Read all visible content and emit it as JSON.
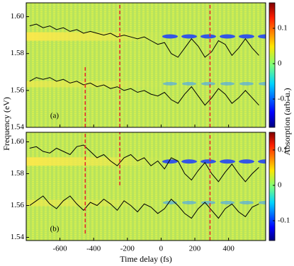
{
  "chart_data": [
    {
      "type": "heatmap",
      "panel_label": "(a)",
      "ylabel": "Frequency (eV)",
      "colorbar_label": "Absorption (arb. u.)",
      "xlim": [
        -800,
        620
      ],
      "xticks": [
        -600,
        -400,
        -200,
        0,
        200,
        400
      ],
      "ylim": [
        1.54,
        1.6075
      ],
      "yticks": [
        1.54,
        1.56,
        1.58,
        {
          "value": 1.6,
          "label": "1.60"
        }
      ],
      "clim": [
        -0.18,
        0.172
      ],
      "cticks": [
        -0.1,
        0,
        0.1
      ],
      "x": [
        -780,
        -740,
        -700,
        -660,
        -620,
        -580,
        -540,
        -500,
        -460,
        -420,
        -380,
        -340,
        -300,
        -260,
        -220,
        -180,
        -140,
        -100,
        -60,
        -20,
        20,
        60,
        100,
        140,
        180,
        220,
        260,
        300,
        340,
        380,
        420,
        460,
        500,
        540,
        580
      ],
      "series": [
        {
          "color": "#000000",
          "values": [
            1.595,
            1.596,
            1.594,
            1.595,
            1.593,
            1.594,
            1.592,
            1.593,
            1.591,
            1.592,
            1.591,
            1.59,
            1.591,
            1.589,
            1.59,
            1.589,
            1.588,
            1.589,
            1.587,
            1.585,
            1.586,
            1.58,
            1.578,
            1.583,
            1.588,
            1.584,
            1.578,
            1.581,
            1.587,
            1.585,
            1.579,
            1.583,
            1.588,
            1.583,
            1.579
          ]
        },
        {
          "color": "#000000",
          "values": [
            1.565,
            1.567,
            1.566,
            1.567,
            1.565,
            1.566,
            1.564,
            1.565,
            1.563,
            1.564,
            1.562,
            1.563,
            1.561,
            1.562,
            1.56,
            1.561,
            1.559,
            1.56,
            1.558,
            1.557,
            1.559,
            1.555,
            1.553,
            1.558,
            1.562,
            1.557,
            1.552,
            1.556,
            1.561,
            1.558,
            1.553,
            1.556,
            1.56,
            1.556,
            1.552
          ]
        }
      ],
      "markers_color": "#e8202a",
      "markers": [
        {
          "x": -450,
          "y": [
            1.54,
            1.573
          ]
        },
        {
          "x": -245,
          "y": [
            1.54,
            1.6075
          ]
        },
        {
          "x": 290,
          "y": [
            1.54,
            1.6075
          ]
        }
      ]
    },
    {
      "type": "heatmap",
      "panel_label": "(b)",
      "xlabel": "Time delay (fs)",
      "xlim": [
        -800,
        620
      ],
      "xticks": [
        -600,
        -400,
        -200,
        0,
        200,
        400
      ],
      "ylim": [
        1.538,
        1.606
      ],
      "yticks": [
        1.54,
        1.56,
        1.58,
        {
          "value": 1.6,
          "label": "1.60"
        }
      ],
      "clim": [
        -0.156,
        0.15
      ],
      "cticks": [
        -0.1,
        0,
        0.1
      ],
      "x": [
        -780,
        -740,
        -700,
        -660,
        -620,
        -580,
        -540,
        -500,
        -460,
        -420,
        -380,
        -340,
        -300,
        -260,
        -220,
        -180,
        -140,
        -100,
        -60,
        -20,
        20,
        60,
        100,
        140,
        180,
        220,
        260,
        300,
        340,
        380,
        420,
        460,
        500,
        540,
        580
      ],
      "series": [
        {
          "color": "#000000",
          "values": [
            1.596,
            1.597,
            1.594,
            1.593,
            1.596,
            1.594,
            1.592,
            1.597,
            1.598,
            1.594,
            1.59,
            1.592,
            1.588,
            1.585,
            1.59,
            1.592,
            1.588,
            1.59,
            1.585,
            1.588,
            1.583,
            1.59,
            1.588,
            1.58,
            1.576,
            1.582,
            1.587,
            1.58,
            1.575,
            1.581,
            1.586,
            1.58,
            1.575,
            1.58,
            1.584
          ]
        },
        {
          "color": "#000000",
          "values": [
            1.56,
            1.563,
            1.566,
            1.561,
            1.558,
            1.563,
            1.566,
            1.561,
            1.557,
            1.562,
            1.56,
            1.564,
            1.561,
            1.557,
            1.563,
            1.56,
            1.556,
            1.561,
            1.559,
            1.555,
            1.558,
            1.564,
            1.56,
            1.555,
            1.552,
            1.558,
            1.562,
            1.557,
            1.552,
            1.558,
            1.561,
            1.556,
            1.553,
            1.559,
            1.561
          ]
        }
      ],
      "markers_color": "#e8202a",
      "markers": [
        {
          "x": -450,
          "y": [
            1.5424,
            1.606
          ]
        },
        {
          "x": -245,
          "y": [
            1.5727,
            1.606
          ]
        },
        {
          "x": 290,
          "y": [
            1.538,
            1.606
          ]
        }
      ]
    }
  ]
}
